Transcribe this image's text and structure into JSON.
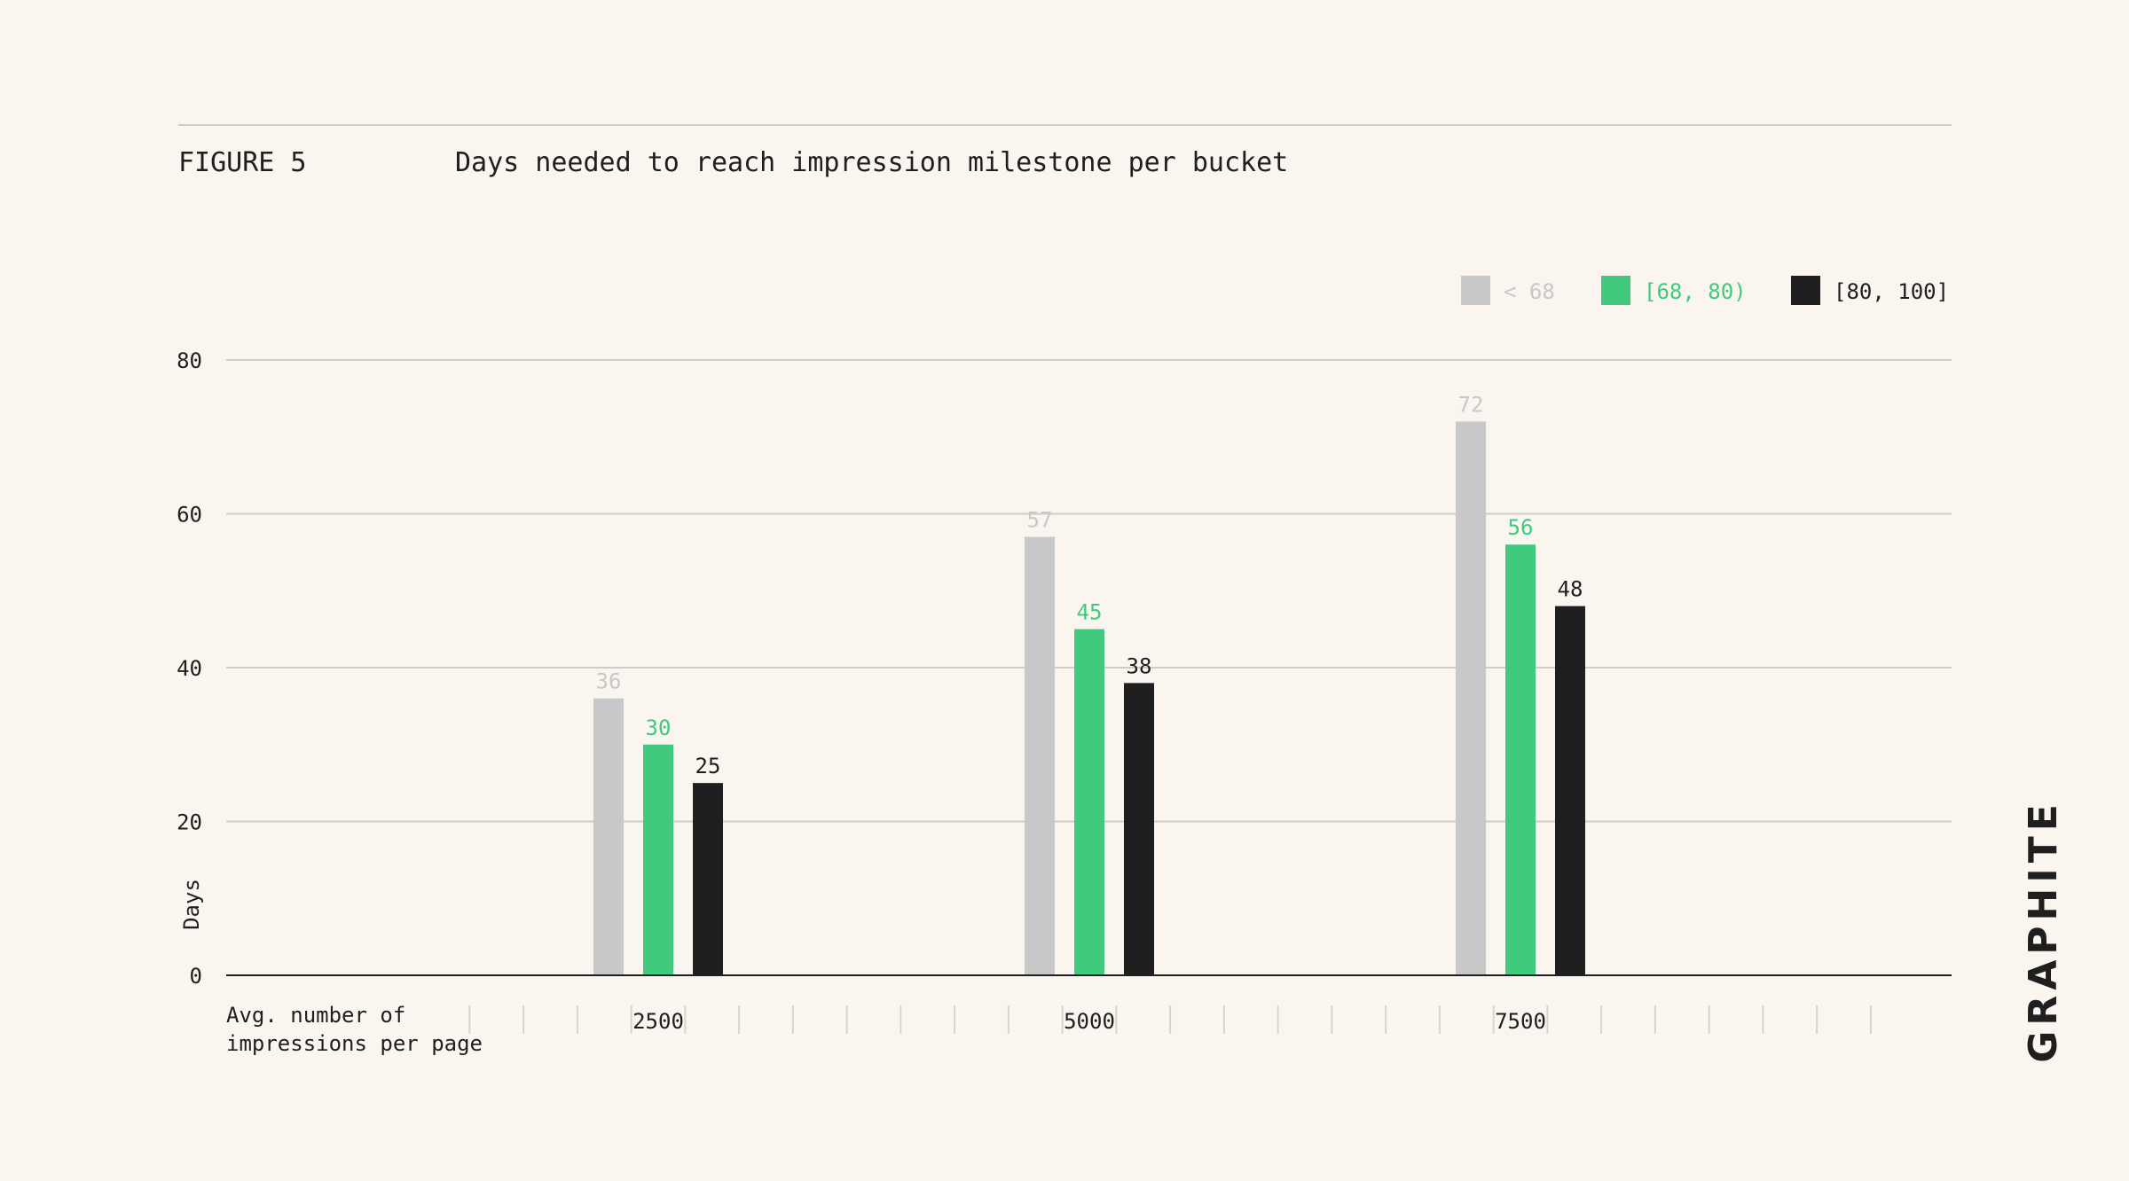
{
  "figure": {
    "label": "FIGURE 5",
    "title": "Days needed to reach impression milestone per bucket",
    "brand": "GRAPHITE"
  },
  "colors": {
    "background": "#faf5ee",
    "grid": "#cfccc6",
    "axis": "#1f1f1f",
    "text": "#1f1f1f",
    "gray": "#c8c8c8",
    "green": "#41c97d",
    "black": "#1f1f1f"
  },
  "chart_data": {
    "type": "bar",
    "ylabel": "Days",
    "xlabel": [
      "Avg. number of",
      "impressions per page"
    ],
    "ylim": [
      0,
      80
    ],
    "yticks": [
      0,
      20,
      40,
      60,
      80
    ],
    "grid": true,
    "legend_position": "top-right",
    "categories": [
      "2500",
      "5000",
      "7500"
    ],
    "series": [
      {
        "name": "< 68",
        "color": "#c8c8c8",
        "values": [
          36,
          57,
          72
        ]
      },
      {
        "name": "[68, 80)",
        "color": "#41c97d",
        "values": [
          30,
          45,
          56
        ]
      },
      {
        "name": "[80, 100]",
        "color": "#1f1f1f",
        "values": [
          25,
          38,
          48
        ]
      }
    ]
  }
}
